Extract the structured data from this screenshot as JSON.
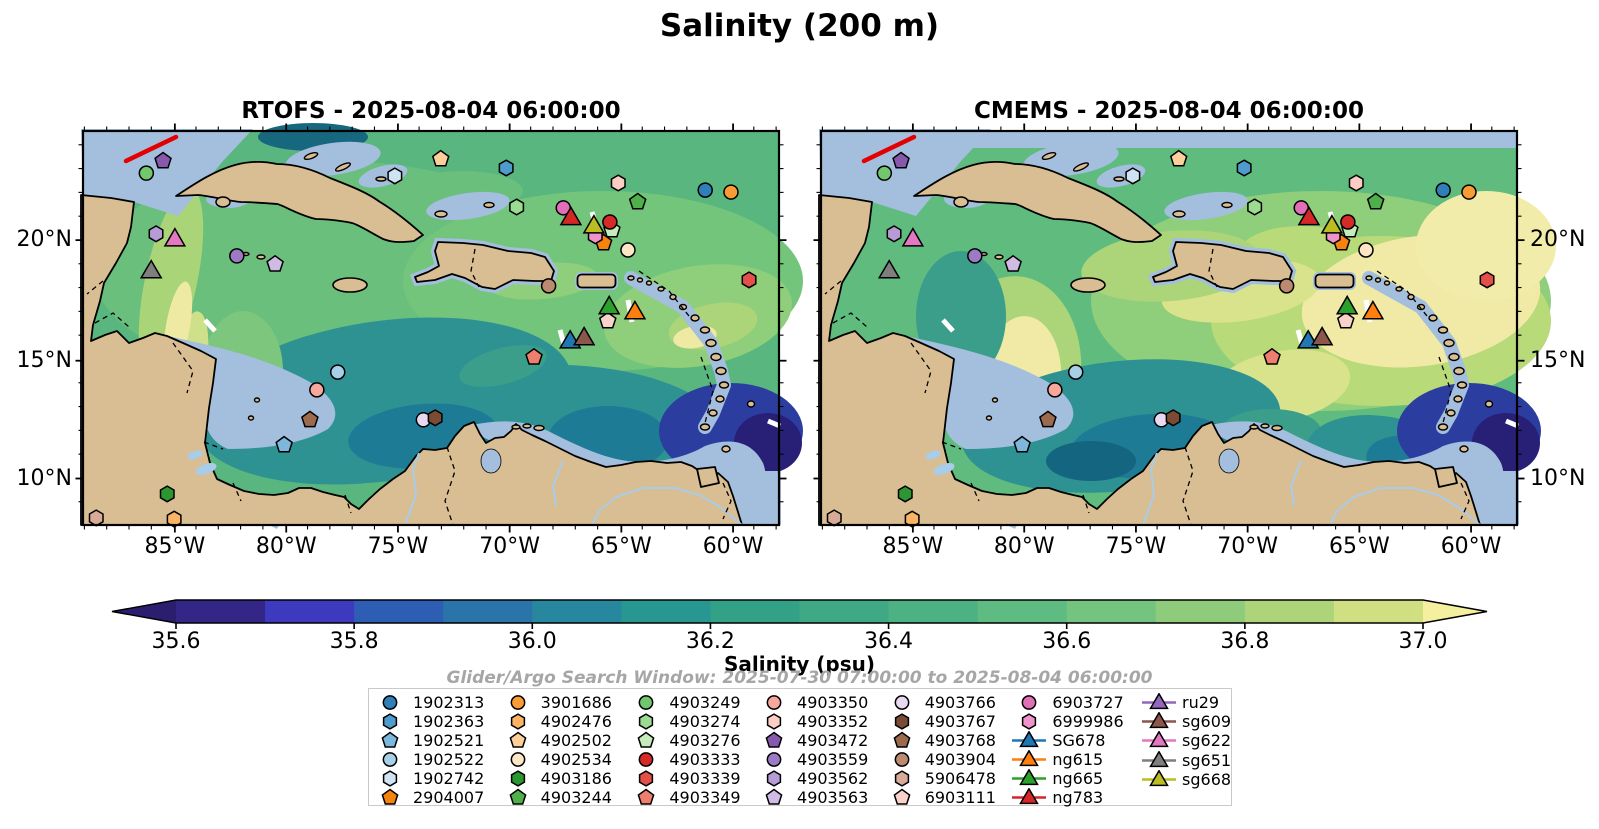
{
  "suptitle": "Salinity (200 m)",
  "panels": [
    {
      "id": "rtofs",
      "title": "RTOFS - 2025-08-04 06:00:00",
      "ylabel_side": "left"
    },
    {
      "id": "cmems",
      "title": "CMEMS - 2025-08-04 06:00:00",
      "ylabel_side": "right"
    }
  ],
  "axes": {
    "x_ticks": [
      {
        "label": "85°W",
        "f": 0.132
      },
      {
        "label": "80°W",
        "f": 0.292
      },
      {
        "label": "75°W",
        "f": 0.4525
      },
      {
        "label": "70°W",
        "f": 0.613
      },
      {
        "label": "65°W",
        "f": 0.7735
      },
      {
        "label": "60°W",
        "f": 0.934
      }
    ],
    "y_ticks": [
      {
        "label": "20°N",
        "f": 0.277
      },
      {
        "label": "15°N",
        "f": 0.583
      },
      {
        "label": "10°N",
        "f": 0.882
      }
    ],
    "x_minor_start": 0.002,
    "x_minor_step": 0.03206,
    "y_minor_start": 0.035,
    "y_minor_step": 0.0604
  },
  "colorbar": {
    "label": "Salinity (psu)",
    "tick_labels": [
      "35.6",
      "35.8",
      "36.0",
      "36.2",
      "36.4",
      "36.6",
      "36.8",
      "37.0"
    ],
    "bands": [
      "#332687",
      "#3d3abf",
      "#2e5db4",
      "#2b74aa",
      "#27879e",
      "#289691",
      "#32a186",
      "#3fa986",
      "#4db283",
      "#5ebb81",
      "#74c37e",
      "#8ecb7a",
      "#aed47a",
      "#cfdf82"
    ],
    "under_color": "#2b1e6e",
    "over_color": "#f5efa0"
  },
  "search_window": "Glider/Argo Search Window: 2025-07-30 07:00:00 to 2025-08-04 06:00:00",
  "legend": {
    "columns": [
      [
        {
          "label": "1902313",
          "shape": "circle",
          "color": "#2f7fb8"
        },
        {
          "label": "1902363",
          "shape": "hexagon",
          "color": "#4f9bcb"
        },
        {
          "label": "1902521",
          "shape": "pentagon",
          "color": "#7db8dc"
        },
        {
          "label": "1902522",
          "shape": "circle",
          "color": "#a7cfe5"
        },
        {
          "label": "1902742",
          "shape": "hexagon",
          "color": "#cfe3f2"
        },
        {
          "label": "2904007",
          "shape": "pentagon",
          "color": "#f5830e"
        }
      ],
      [
        {
          "label": "3901686",
          "shape": "circle",
          "color": "#fa9b36"
        },
        {
          "label": "4902476",
          "shape": "hexagon",
          "color": "#fbb465"
        },
        {
          "label": "4902502",
          "shape": "pentagon",
          "color": "#fdcf9b"
        },
        {
          "label": "4902534",
          "shape": "circle",
          "color": "#fde5c5"
        },
        {
          "label": "4903186",
          "shape": "hexagon",
          "color": "#2c9631"
        },
        {
          "label": "4903244",
          "shape": "pentagon",
          "color": "#4fb04b"
        }
      ],
      [
        {
          "label": "4903249",
          "shape": "circle",
          "color": "#72c66e"
        },
        {
          "label": "4903274",
          "shape": "hexagon",
          "color": "#9cdb92"
        },
        {
          "label": "4903276",
          "shape": "pentagon",
          "color": "#c5ecba"
        },
        {
          "label": "4903333",
          "shape": "circle",
          "color": "#d62a28"
        },
        {
          "label": "4903339",
          "shape": "hexagon",
          "color": "#e25049"
        },
        {
          "label": "4903349",
          "shape": "pentagon",
          "color": "#ee7f6e"
        }
      ],
      [
        {
          "label": "4903350",
          "shape": "circle",
          "color": "#f7a79c"
        },
        {
          "label": "4903352",
          "shape": "hexagon",
          "color": "#fbcdc5"
        },
        {
          "label": "4903472",
          "shape": "pentagon",
          "color": "#8659ad"
        },
        {
          "label": "4903559",
          "shape": "circle",
          "color": "#9d7bc4"
        },
        {
          "label": "4903562",
          "shape": "hexagon",
          "color": "#b79bd5"
        },
        {
          "label": "4903563",
          "shape": "pentagon",
          "color": "#cfbbe4"
        }
      ],
      [
        {
          "label": "4903766",
          "shape": "circle",
          "color": "#e6d9f0"
        },
        {
          "label": "4903767",
          "shape": "hexagon",
          "color": "#7a4c35"
        },
        {
          "label": "4903768",
          "shape": "pentagon",
          "color": "#9c6a4d"
        },
        {
          "label": "4903904",
          "shape": "circle",
          "color": "#bb8a70"
        },
        {
          "label": "5906478",
          "shape": "hexagon",
          "color": "#d7ab97"
        },
        {
          "label": "6903111",
          "shape": "pentagon",
          "color": "#f9d3c9"
        }
      ],
      [
        {
          "label": "6903727",
          "shape": "circle",
          "color": "#e06fb8"
        },
        {
          "label": "6999986",
          "shape": "hexagon",
          "color": "#ef93cd"
        },
        {
          "label": "SG678",
          "shape": "triangle",
          "color": "#1f77b4"
        },
        {
          "label": "ng615",
          "shape": "triangle",
          "color": "#ff7f0e"
        },
        {
          "label": "ng665",
          "shape": "triangle",
          "color": "#2ca02c"
        },
        {
          "label": "ng783",
          "shape": "triangle",
          "color": "#d62728"
        }
      ],
      [
        {
          "label": "ru29",
          "shape": "triangle",
          "color": "#9467bd"
        },
        {
          "label": "sg609",
          "shape": "triangle",
          "color": "#8c564b"
        },
        {
          "label": "sg622",
          "shape": "triangle",
          "color": "#e377c2"
        },
        {
          "label": "sg651",
          "shape": "triangle",
          "color": "#7f7f7f"
        },
        {
          "label": "sg668",
          "shape": "triangle",
          "color": "#bcbd22"
        }
      ]
    ]
  },
  "markers": [
    {
      "id": "1902313",
      "shape": "circle",
      "color": "#2f7fb8",
      "fx": 0.894,
      "fy": 0.15
    },
    {
      "id": "1902363",
      "shape": "hexagon",
      "color": "#4f9bcb",
      "fx": 0.608,
      "fy": 0.094
    },
    {
      "id": "1902521",
      "shape": "pentagon",
      "color": "#7db8dc",
      "fx": 0.289,
      "fy": 0.797
    },
    {
      "id": "1902522",
      "shape": "circle",
      "color": "#a7cfe5",
      "fx": 0.366,
      "fy": 0.612
    },
    {
      "id": "1902742",
      "shape": "hexagon",
      "color": "#cfe3f2",
      "fx": 0.448,
      "fy": 0.114
    },
    {
      "id": "2904007",
      "shape": "pentagon",
      "color": "#f5830e",
      "fx": 0.748,
      "fy": 0.284
    },
    {
      "id": "3901686",
      "shape": "circle",
      "color": "#fa9b36",
      "fx": 0.931,
      "fy": 0.155
    },
    {
      "id": "4902476",
      "shape": "hexagon",
      "color": "#fbb465",
      "fx": 0.131,
      "fy": 0.985
    },
    {
      "id": "4902502",
      "shape": "pentagon",
      "color": "#fdcf9b",
      "fx": 0.514,
      "fy": 0.071
    },
    {
      "id": "4902534",
      "shape": "circle",
      "color": "#fde5c5",
      "fx": 0.783,
      "fy": 0.302
    },
    {
      "id": "4903186",
      "shape": "hexagon",
      "color": "#2c9631",
      "fx": 0.121,
      "fy": 0.921
    },
    {
      "id": "4903244",
      "shape": "pentagon",
      "color": "#4fb04b",
      "fx": 0.797,
      "fy": 0.18
    },
    {
      "id": "4903249",
      "shape": "circle",
      "color": "#72c66e",
      "fx": 0.091,
      "fy": 0.107
    },
    {
      "id": "4903274",
      "shape": "hexagon",
      "color": "#9cdb92",
      "fx": 0.623,
      "fy": 0.193
    },
    {
      "id": "4903276",
      "shape": "pentagon",
      "color": "#c5ecba",
      "fx": 0.76,
      "fy": 0.251
    },
    {
      "id": "4903333",
      "shape": "circle",
      "color": "#d62a28",
      "fx": 0.757,
      "fy": 0.231
    },
    {
      "id": "4903339",
      "shape": "hexagon",
      "color": "#e25049",
      "fx": 0.957,
      "fy": 0.378
    },
    {
      "id": "4903349",
      "shape": "pentagon",
      "color": "#ee7f6e",
      "fx": 0.648,
      "fy": 0.574
    },
    {
      "id": "4903350",
      "shape": "circle",
      "color": "#f7a79c",
      "fx": 0.336,
      "fy": 0.657
    },
    {
      "id": "4903352",
      "shape": "hexagon",
      "color": "#fbcdc5",
      "fx": 0.769,
      "fy": 0.132
    },
    {
      "id": "4903472",
      "shape": "pentagon",
      "color": "#8659ad",
      "fx": 0.115,
      "fy": 0.076
    },
    {
      "id": "4903559",
      "shape": "circle",
      "color": "#9d7bc4",
      "fx": 0.221,
      "fy": 0.317
    },
    {
      "id": "4903562",
      "shape": "hexagon",
      "color": "#b79bd5",
      "fx": 0.105,
      "fy": 0.261
    },
    {
      "id": "4903563",
      "shape": "pentagon",
      "color": "#cfbbe4",
      "fx": 0.276,
      "fy": 0.338
    },
    {
      "id": "4903766",
      "shape": "circle",
      "color": "#e6d9f0",
      "fx": 0.489,
      "fy": 0.733
    },
    {
      "id": "4903767",
      "shape": "hexagon",
      "color": "#7a4c35",
      "fx": 0.506,
      "fy": 0.728
    },
    {
      "id": "4903768",
      "shape": "pentagon",
      "color": "#9c6a4d",
      "fx": 0.326,
      "fy": 0.733
    },
    {
      "id": "4903904",
      "shape": "circle",
      "color": "#bb8a70",
      "fx": 0.669,
      "fy": 0.393
    },
    {
      "id": "5906478",
      "shape": "hexagon",
      "color": "#d7ab97",
      "fx": 0.019,
      "fy": 0.982
    },
    {
      "id": "6903111",
      "shape": "pentagon",
      "color": "#f9d3c9",
      "fx": 0.754,
      "fy": 0.482
    },
    {
      "id": "6903727",
      "shape": "circle",
      "color": "#e06fb8",
      "fx": 0.69,
      "fy": 0.195
    },
    {
      "id": "6999986",
      "shape": "hexagon",
      "color": "#ef93cd",
      "fx": 0.736,
      "fy": 0.266
    },
    {
      "id": "SG678",
      "shape": "triangle",
      "color": "#1f77b4",
      "fx": 0.7,
      "fy": 0.536
    },
    {
      "id": "ng615",
      "shape": "triangle",
      "color": "#ff7f0e",
      "fx": 0.793,
      "fy": 0.462
    },
    {
      "id": "ng665",
      "shape": "triangle",
      "color": "#2ca02c",
      "fx": 0.756,
      "fy": 0.449
    },
    {
      "id": "ng783",
      "shape": "triangle",
      "color": "#d62728",
      "fx": 0.701,
      "fy": 0.223
    },
    {
      "id": "sg609",
      "shape": "triangle",
      "color": "#8c564b",
      "fx": 0.72,
      "fy": 0.528
    },
    {
      "id": "sg622",
      "shape": "triangle",
      "color": "#e377c2",
      "fx": 0.132,
      "fy": 0.277
    },
    {
      "id": "sg651",
      "shape": "triangle",
      "color": "#7f7f7f",
      "fx": 0.098,
      "fy": 0.358
    },
    {
      "id": "sg668",
      "shape": "triangle",
      "color": "#bcbd22",
      "fx": 0.734,
      "fy": 0.244
    }
  ],
  "chart_data": {
    "type": "heatmap",
    "subtype": "two-panel filled-contour ocean map comparison with platform markers",
    "title": "Salinity (200 m)",
    "panel_titles": [
      "RTOFS - 2025-08-04 06:00:00",
      "CMEMS - 2025-08-04 06:00:00"
    ],
    "colorbar": {
      "label": "Salinity (psu)",
      "ticks": [
        35.6,
        35.8,
        36.0,
        36.2,
        36.4,
        36.6,
        36.8,
        37.0
      ],
      "range": [
        35.6,
        37.0
      ],
      "extend": "both"
    },
    "x_axis": {
      "ticks": [
        "85°W",
        "80°W",
        "75°W",
        "70°W",
        "65°W",
        "60°W"
      ]
    },
    "y_axis": {
      "ticks": [
        "20°N",
        "15°N",
        "10°N"
      ]
    },
    "annotation": "Glider/Argo Search Window: 2025-07-30 07:00:00 to 2025-08-04 06:00:00",
    "platforms_argo": [
      "1902313",
      "1902363",
      "1902521",
      "1902522",
      "1902742",
      "2904007",
      "3901686",
      "4902476",
      "4902502",
      "4902534",
      "4903186",
      "4903244",
      "4903249",
      "4903274",
      "4903276",
      "4903333",
      "4903339",
      "4903349",
      "4903350",
      "4903352",
      "4903472",
      "4903559",
      "4903562",
      "4903563",
      "4903766",
      "4903767",
      "4903768",
      "4903904",
      "5906478",
      "6903111",
      "6903727",
      "6999986"
    ],
    "platforms_glider": [
      "SG678",
      "ng615",
      "ng665",
      "ng783",
      "ru29",
      "sg609",
      "sg622",
      "sg651",
      "sg668"
    ]
  },
  "map_colors": {
    "land": "#d9bd93",
    "shelf": "#a4bedd",
    "coast": "#000000",
    "pacific": "#2c2173",
    "orinoco": "#2c3da0",
    "deep_corner": "#281f77",
    "river": "#a9cce8",
    "red_track": "#e50000",
    "white_track": "#ffffff"
  }
}
